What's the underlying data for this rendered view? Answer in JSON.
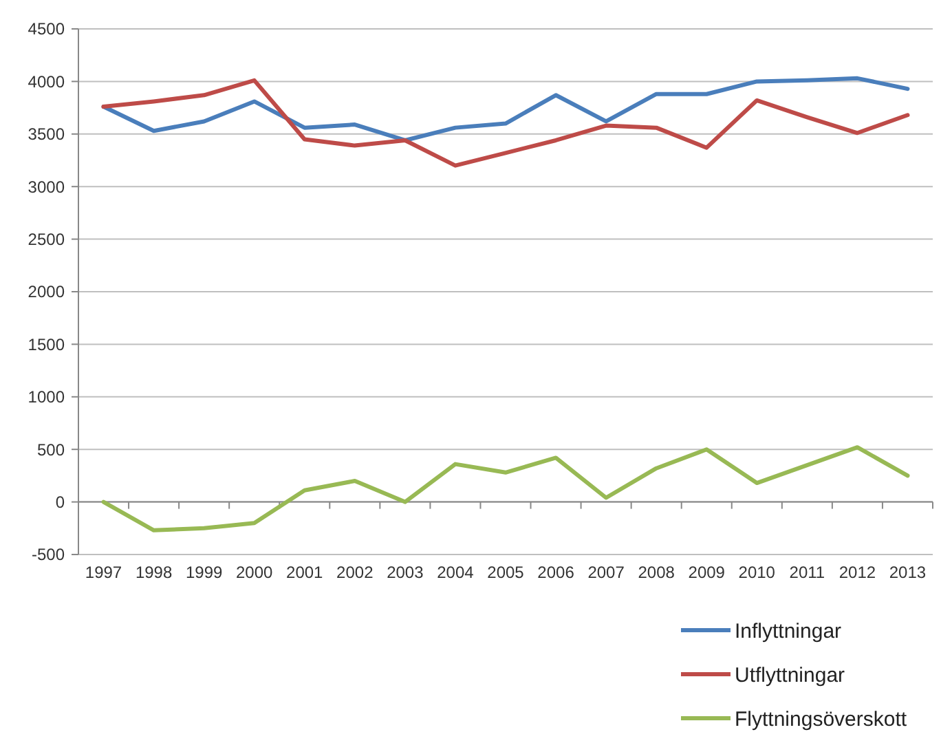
{
  "chart_data": {
    "type": "line",
    "categories": [
      "1997",
      "1998",
      "1999",
      "2000",
      "2001",
      "2002",
      "2003",
      "2004",
      "2005",
      "2006",
      "2007",
      "2008",
      "2009",
      "2010",
      "2011",
      "2012",
      "2013"
    ],
    "series": [
      {
        "name": "Inflyttningar",
        "color": "#4a7ebb",
        "values": [
          3760,
          3530,
          3620,
          3810,
          3560,
          3590,
          3440,
          3560,
          3600,
          3870,
          3620,
          3880,
          3880,
          4000,
          4010,
          4030,
          3930
        ]
      },
      {
        "name": "Utflyttningar",
        "color": "#be4b48",
        "values": [
          3760,
          3810,
          3870,
          4010,
          3450,
          3390,
          3440,
          3200,
          3320,
          3440,
          3580,
          3560,
          3370,
          3820,
          3660,
          3510,
          3680
        ]
      },
      {
        "name": "Flyttningsöverskott",
        "color": "#98b954",
        "values": [
          0,
          -270,
          -250,
          -200,
          110,
          200,
          0,
          360,
          280,
          420,
          40,
          320,
          500,
          180,
          350,
          520,
          250
        ]
      }
    ],
    "ylim": [
      -500,
      4500
    ],
    "yticks": [
      -500,
      0,
      500,
      1000,
      1500,
      2000,
      2500,
      3000,
      3500,
      4000,
      4500
    ],
    "grid": "y",
    "legend": "bottom right",
    "marker": "none",
    "line_style": "solid"
  }
}
